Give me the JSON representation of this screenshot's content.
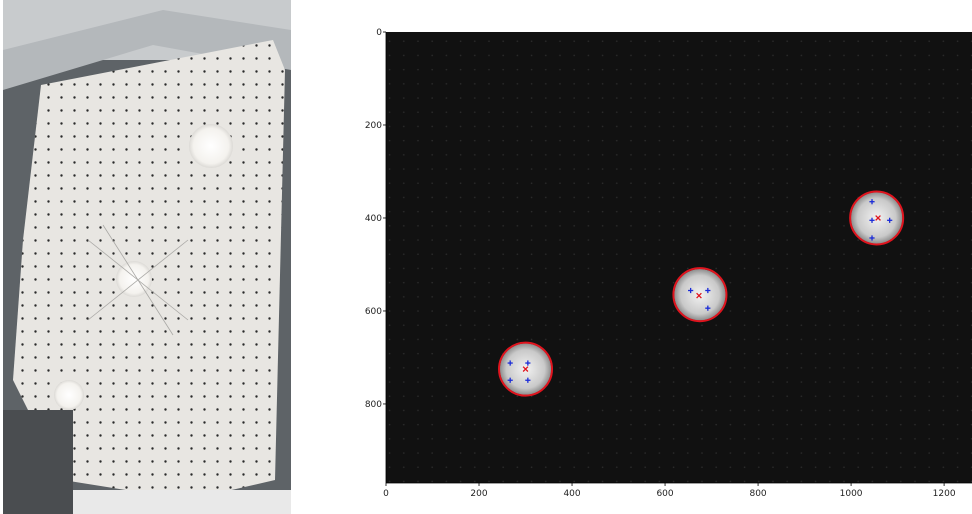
{
  "left_photo": {
    "description_icon": "perforated-board-photo",
    "colors": {
      "board": "#e8e6e2",
      "frame": "#bfc3c6",
      "hole": "#2a2a2a",
      "spot": "#ffffff"
    }
  },
  "chart_data": {
    "type": "scatter",
    "x_ticks": [
      "0",
      "200",
      "400",
      "600",
      "800",
      "1000",
      "1200"
    ],
    "y_ticks": [
      "0",
      "200",
      "400",
      "600",
      "800"
    ],
    "xlim": [
      0,
      1260
    ],
    "ylim": [
      970,
      0
    ],
    "grid": false,
    "circles": [
      {
        "cx": 300,
        "cy": 725,
        "r": 57
      },
      {
        "cx": 675,
        "cy": 565,
        "r": 57
      },
      {
        "cx": 1055,
        "cy": 400,
        "r": 57
      }
    ],
    "centroids_red_x": [
      {
        "x": 300,
        "y": 725
      },
      {
        "x": 673,
        "y": 567
      },
      {
        "x": 1058,
        "y": 400
      }
    ],
    "markers_blue_plus": [
      {
        "x": 267,
        "y": 712
      },
      {
        "x": 305,
        "y": 712
      },
      {
        "x": 267,
        "y": 749
      },
      {
        "x": 305,
        "y": 749
      },
      {
        "x": 655,
        "y": 556
      },
      {
        "x": 692,
        "y": 556
      },
      {
        "x": 692,
        "y": 594
      },
      {
        "x": 1045,
        "y": 365
      },
      {
        "x": 1045,
        "y": 405
      },
      {
        "x": 1083,
        "y": 405
      },
      {
        "x": 1045,
        "y": 443
      }
    ],
    "colors": {
      "circle": "#e0141e",
      "centroid": "#e0141e",
      "marker": "#1a2bd8",
      "background": "#0d0d0d"
    }
  }
}
